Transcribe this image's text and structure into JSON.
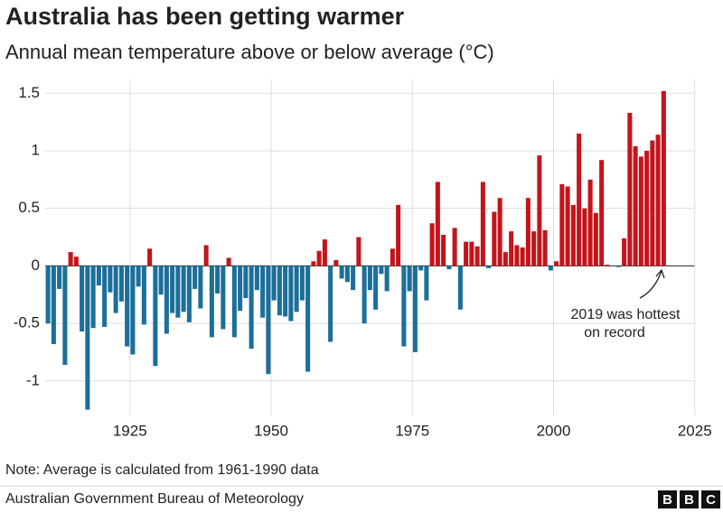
{
  "chart_data": {
    "type": "bar",
    "title": "Australia has been getting warmer",
    "subtitle": "Annual mean temperature above or below average (°C)",
    "x": [
      1910,
      1911,
      1912,
      1913,
      1914,
      1915,
      1916,
      1917,
      1918,
      1919,
      1920,
      1921,
      1922,
      1923,
      1924,
      1925,
      1926,
      1927,
      1928,
      1929,
      1930,
      1931,
      1932,
      1933,
      1934,
      1935,
      1936,
      1937,
      1938,
      1939,
      1940,
      1941,
      1942,
      1943,
      1944,
      1945,
      1946,
      1947,
      1948,
      1949,
      1950,
      1951,
      1952,
      1953,
      1954,
      1955,
      1956,
      1957,
      1958,
      1959,
      1960,
      1961,
      1962,
      1963,
      1964,
      1965,
      1966,
      1967,
      1968,
      1969,
      1970,
      1971,
      1972,
      1973,
      1974,
      1975,
      1976,
      1977,
      1978,
      1979,
      1980,
      1981,
      1982,
      1983,
      1984,
      1985,
      1986,
      1987,
      1988,
      1989,
      1990,
      1991,
      1992,
      1993,
      1994,
      1995,
      1996,
      1997,
      1998,
      1999,
      2000,
      2001,
      2002,
      2003,
      2004,
      2005,
      2006,
      2007,
      2008,
      2009,
      2010,
      2011,
      2012,
      2013,
      2014,
      2015,
      2016,
      2017,
      2018,
      2019
    ],
    "values": [
      -0.5,
      -0.68,
      -0.2,
      -0.86,
      0.12,
      0.08,
      -0.57,
      -1.25,
      -0.54,
      -0.17,
      -0.53,
      -0.23,
      -0.41,
      -0.31,
      -0.7,
      -0.77,
      -0.18,
      -0.51,
      0.15,
      -0.87,
      -0.25,
      -0.59,
      -0.41,
      -0.45,
      -0.4,
      -0.49,
      -0.2,
      -0.37,
      0.18,
      -0.62,
      -0.24,
      -0.55,
      0.07,
      -0.62,
      -0.39,
      -0.28,
      -0.72,
      -0.21,
      -0.45,
      -0.94,
      -0.3,
      -0.43,
      -0.44,
      -0.48,
      -0.4,
      -0.3,
      -0.92,
      0.04,
      0.13,
      0.23,
      -0.66,
      0.05,
      -0.11,
      -0.14,
      -0.21,
      0.25,
      -0.5,
      -0.21,
      -0.38,
      -0.07,
      -0.22,
      0.15,
      0.53,
      -0.7,
      -0.22,
      -0.75,
      -0.04,
      -0.3,
      0.37,
      0.73,
      0.27,
      -0.03,
      0.33,
      -0.38,
      0.21,
      0.21,
      0.17,
      0.73,
      -0.02,
      0.47,
      0.59,
      0.12,
      0.3,
      0.18,
      0.16,
      0.59,
      0.3,
      0.96,
      0.31,
      -0.04,
      0.04,
      0.71,
      0.69,
      0.53,
      1.15,
      0.5,
      0.75,
      0.46,
      0.92,
      0.01,
      0.0,
      -0.01,
      0.24,
      1.33,
      1.04,
      0.95,
      1.0,
      1.09,
      1.14,
      1.52
    ],
    "positive_color": "#c4141b",
    "negative_color": "#1b6f9a",
    "xlim": [
      1910,
      2025
    ],
    "xticks": [
      1925,
      1950,
      1975,
      2000,
      2025
    ],
    "ylim": [
      -1.3,
      1.62
    ],
    "yticks": [
      -1,
      -0.5,
      0,
      0.5,
      1,
      1.5
    ],
    "grid": true,
    "annotation": [
      "2019 was hottest",
      "on record"
    ],
    "note": "Note: Average is calculated from 1961-1990 data",
    "source": "Australian Government Bureau of Meteorology",
    "logo": [
      "B",
      "B",
      "C"
    ]
  }
}
